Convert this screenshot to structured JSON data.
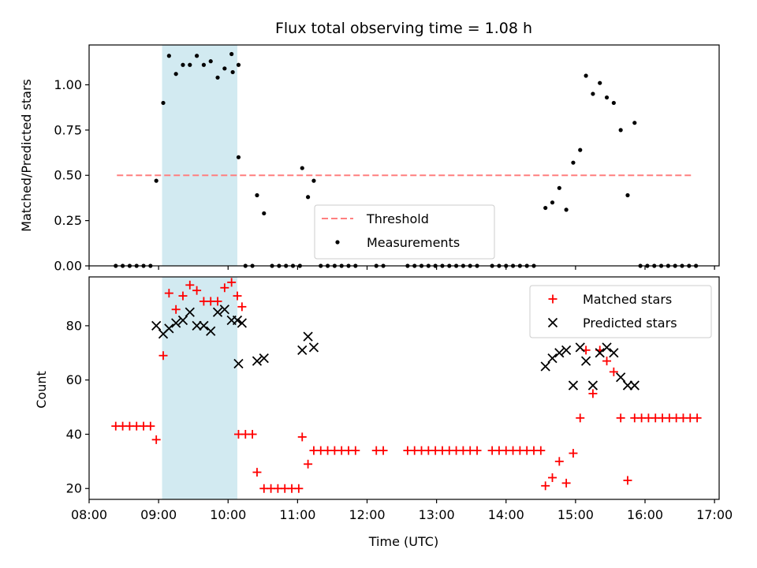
{
  "chart_data": [
    {
      "type": "scatter",
      "title": "Flux total observing time = 1.08 h",
      "xlabel": "",
      "ylabel": "Matched/Predicted stars",
      "ylim": [
        0,
        1.22
      ],
      "yticks": [
        "0.00",
        "0.25",
        "0.50",
        "0.75",
        "1.00"
      ],
      "ytick_values": [
        0,
        0.25,
        0.5,
        0.75,
        1.0
      ],
      "legend": {
        "location": "lower-center",
        "entries": [
          "Threshold",
          "Measurements"
        ]
      },
      "threshold": {
        "name": "Threshold",
        "y": 0.5,
        "x_range": [
          "08:24",
          "16:40"
        ],
        "color": "#ff7f7f",
        "style": "dashed"
      },
      "shaded_span": {
        "x_range": [
          "09:03",
          "10:08"
        ],
        "color": "#add8e6"
      },
      "series": [
        {
          "name": "Measurements",
          "color": "#000000",
          "marker": "dot",
          "points": [
            [
              "08:23",
              0
            ],
            [
              "08:29",
              0
            ],
            [
              "08:35",
              0
            ],
            [
              "08:41",
              0
            ],
            [
              "08:47",
              0
            ],
            [
              "08:53",
              0
            ],
            [
              "08:58",
              0.47
            ],
            [
              "09:04",
              0.9
            ],
            [
              "09:09",
              1.16
            ],
            [
              "09:15",
              1.06
            ],
            [
              "09:21",
              1.11
            ],
            [
              "09:27",
              1.11
            ],
            [
              "09:33",
              1.16
            ],
            [
              "09:39",
              1.11
            ],
            [
              "09:45",
              1.13
            ],
            [
              "09:51",
              1.04
            ],
            [
              "09:57",
              1.09
            ],
            [
              "10:03",
              1.17
            ],
            [
              "10:09",
              1.11
            ],
            [
              "10:04",
              1.07
            ],
            [
              "10:09",
              0.6
            ],
            [
              "10:15",
              0
            ],
            [
              "10:21",
              0
            ],
            [
              "10:25",
              0.39
            ],
            [
              "10:31",
              0.29
            ],
            [
              "10:38",
              0
            ],
            [
              "10:44",
              0
            ],
            [
              "10:50",
              0
            ],
            [
              "10:56",
              0
            ],
            [
              "11:02",
              0
            ],
            [
              "11:04",
              0.54
            ],
            [
              "11:09",
              0.38
            ],
            [
              "11:14",
              0.47
            ],
            [
              "11:20",
              0
            ],
            [
              "11:26",
              0
            ],
            [
              "11:32",
              0
            ],
            [
              "11:38",
              0
            ],
            [
              "11:44",
              0
            ],
            [
              "11:50",
              0
            ],
            [
              "12:08",
              0
            ],
            [
              "12:14",
              0
            ],
            [
              "12:35",
              0
            ],
            [
              "12:41",
              0
            ],
            [
              "12:47",
              0
            ],
            [
              "12:53",
              0
            ],
            [
              "12:59",
              0
            ],
            [
              "13:05",
              0
            ],
            [
              "13:11",
              0
            ],
            [
              "13:17",
              0
            ],
            [
              "13:23",
              0
            ],
            [
              "13:29",
              0
            ],
            [
              "13:35",
              0
            ],
            [
              "13:48",
              0
            ],
            [
              "13:54",
              0
            ],
            [
              "14:00",
              0
            ],
            [
              "14:06",
              0
            ],
            [
              "14:12",
              0
            ],
            [
              "14:18",
              0
            ],
            [
              "14:24",
              0
            ],
            [
              "14:34",
              0.32
            ],
            [
              "14:40",
              0.35
            ],
            [
              "14:46",
              0.43
            ],
            [
              "14:52",
              0.31
            ],
            [
              "14:58",
              0.57
            ],
            [
              "15:04",
              0.64
            ],
            [
              "15:09",
              1.05
            ],
            [
              "15:15",
              0.95
            ],
            [
              "15:21",
              1.01
            ],
            [
              "15:27",
              0.93
            ],
            [
              "15:33",
              0.9
            ],
            [
              "15:39",
              0.75
            ],
            [
              "15:45",
              0.39
            ],
            [
              "15:51",
              0.79
            ],
            [
              "15:56",
              0
            ],
            [
              "16:02",
              0
            ],
            [
              "16:08",
              0
            ],
            [
              "16:14",
              0
            ],
            [
              "16:20",
              0
            ],
            [
              "16:26",
              0
            ],
            [
              "16:32",
              0
            ],
            [
              "16:38",
              0
            ],
            [
              "16:44",
              0
            ]
          ]
        }
      ]
    },
    {
      "type": "scatter",
      "title": "",
      "xlabel": "Time (UTC)",
      "ylabel": "Count",
      "ylim": [
        16,
        98
      ],
      "yticks": [
        "20",
        "40",
        "60",
        "80"
      ],
      "ytick_values": [
        20,
        40,
        60,
        80
      ],
      "xlim": [
        "08:00",
        "17:04"
      ],
      "xticks": [
        "08:00",
        "09:00",
        "10:00",
        "11:00",
        "12:00",
        "13:00",
        "14:00",
        "15:00",
        "16:00",
        "17:00"
      ],
      "legend": {
        "location": "top-right",
        "entries": [
          "Matched stars",
          "Predicted stars"
        ]
      },
      "shaded_span": {
        "x_range": [
          "09:03",
          "10:08"
        ],
        "color": "#add8e6"
      },
      "series": [
        {
          "name": "Matched stars",
          "color": "#ff0000",
          "marker": "plus",
          "points": [
            [
              "08:23",
              43
            ],
            [
              "08:29",
              43
            ],
            [
              "08:35",
              43
            ],
            [
              "08:41",
              43
            ],
            [
              "08:47",
              43
            ],
            [
              "08:53",
              43
            ],
            [
              "08:58",
              38
            ],
            [
              "09:04",
              69
            ],
            [
              "09:09",
              92
            ],
            [
              "09:15",
              86
            ],
            [
              "09:21",
              91
            ],
            [
              "09:27",
              95
            ],
            [
              "09:33",
              93
            ],
            [
              "09:39",
              89
            ],
            [
              "09:45",
              89
            ],
            [
              "09:51",
              89
            ],
            [
              "09:57",
              94
            ],
            [
              "10:03",
              96
            ],
            [
              "10:08",
              91
            ],
            [
              "10:12",
              87
            ],
            [
              "10:09",
              40
            ],
            [
              "10:15",
              40
            ],
            [
              "10:21",
              40
            ],
            [
              "10:25",
              26
            ],
            [
              "10:31",
              20
            ],
            [
              "10:37",
              20
            ],
            [
              "10:43",
              20
            ],
            [
              "10:49",
              20
            ],
            [
              "10:55",
              20
            ],
            [
              "11:01",
              20
            ],
            [
              "11:04",
              39
            ],
            [
              "11:09",
              29
            ],
            [
              "11:14",
              34
            ],
            [
              "11:20",
              34
            ],
            [
              "11:26",
              34
            ],
            [
              "11:32",
              34
            ],
            [
              "11:38",
              34
            ],
            [
              "11:44",
              34
            ],
            [
              "11:50",
              34
            ],
            [
              "12:08",
              34
            ],
            [
              "12:14",
              34
            ],
            [
              "12:35",
              34
            ],
            [
              "12:41",
              34
            ],
            [
              "12:47",
              34
            ],
            [
              "12:53",
              34
            ],
            [
              "12:59",
              34
            ],
            [
              "13:05",
              34
            ],
            [
              "13:11",
              34
            ],
            [
              "13:17",
              34
            ],
            [
              "13:23",
              34
            ],
            [
              "13:29",
              34
            ],
            [
              "13:35",
              34
            ],
            [
              "13:48",
              34
            ],
            [
              "13:54",
              34
            ],
            [
              "14:00",
              34
            ],
            [
              "14:06",
              34
            ],
            [
              "14:12",
              34
            ],
            [
              "14:18",
              34
            ],
            [
              "14:24",
              34
            ],
            [
              "14:30",
              34
            ],
            [
              "14:34",
              21
            ],
            [
              "14:40",
              24
            ],
            [
              "14:46",
              30
            ],
            [
              "14:52",
              22
            ],
            [
              "14:58",
              33
            ],
            [
              "15:04",
              46
            ],
            [
              "15:09",
              71
            ],
            [
              "15:15",
              55
            ],
            [
              "15:21",
              71
            ],
            [
              "15:27",
              67
            ],
            [
              "15:33",
              63
            ],
            [
              "15:39",
              46
            ],
            [
              "15:45",
              23
            ],
            [
              "15:51",
              46
            ],
            [
              "15:57",
              46
            ],
            [
              "16:03",
              46
            ],
            [
              "16:09",
              46
            ],
            [
              "16:15",
              46
            ],
            [
              "16:21",
              46
            ],
            [
              "16:27",
              46
            ],
            [
              "16:33",
              46
            ],
            [
              "16:39",
              46
            ],
            [
              "16:45",
              46
            ]
          ]
        },
        {
          "name": "Predicted stars",
          "color": "#000000",
          "marker": "x",
          "points": [
            [
              "08:58",
              80
            ],
            [
              "09:04",
              77
            ],
            [
              "09:09",
              79
            ],
            [
              "09:15",
              81
            ],
            [
              "09:21",
              82
            ],
            [
              "09:27",
              85
            ],
            [
              "09:33",
              80
            ],
            [
              "09:39",
              80
            ],
            [
              "09:45",
              78
            ],
            [
              "09:51",
              85
            ],
            [
              "09:57",
              86
            ],
            [
              "10:03",
              82
            ],
            [
              "10:08",
              82
            ],
            [
              "10:12",
              81
            ],
            [
              "10:09",
              66
            ],
            [
              "10:25",
              67
            ],
            [
              "10:31",
              68
            ],
            [
              "11:04",
              71
            ],
            [
              "11:09",
              76
            ],
            [
              "11:14",
              72
            ],
            [
              "14:34",
              65
            ],
            [
              "14:40",
              68
            ],
            [
              "14:46",
              70
            ],
            [
              "14:52",
              71
            ],
            [
              "14:58",
              58
            ],
            [
              "15:04",
              72
            ],
            [
              "15:09",
              67
            ],
            [
              "15:15",
              58
            ],
            [
              "15:21",
              70
            ],
            [
              "15:27",
              72
            ],
            [
              "15:33",
              70
            ],
            [
              "15:39",
              61
            ],
            [
              "15:45",
              58
            ],
            [
              "15:51",
              58
            ]
          ]
        }
      ]
    }
  ]
}
